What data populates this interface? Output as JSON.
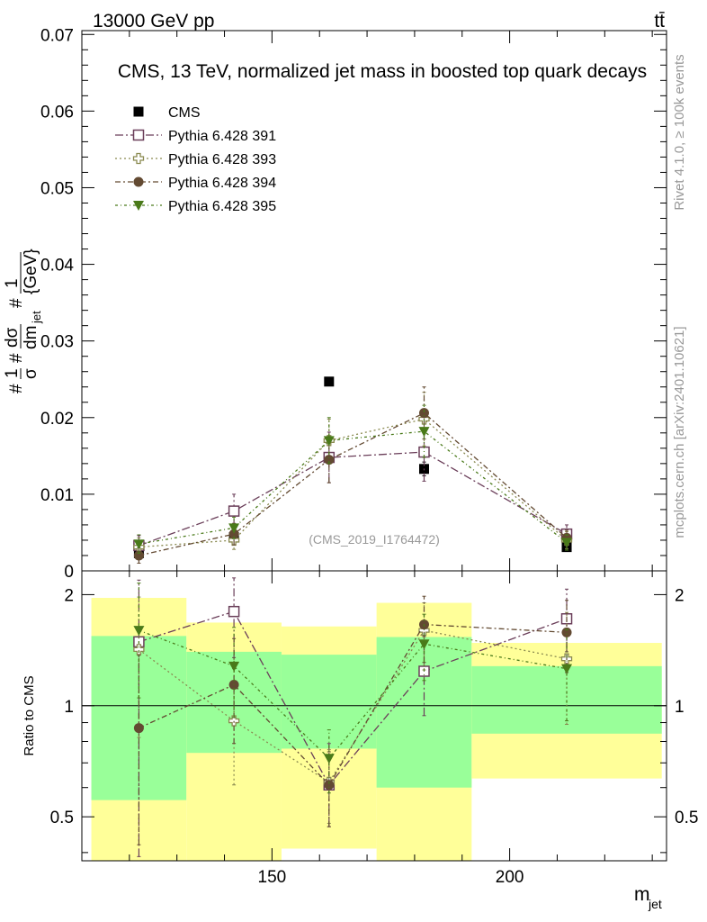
{
  "header": {
    "left": "13000 GeV pp",
    "right": "tt̄"
  },
  "side_labels": {
    "rivet": "Rivet 4.1.0, ≥ 100k events",
    "mcplots": "mcplots.cern.ch [arXiv:2401.10621]"
  },
  "colors": {
    "cms": "#000000",
    "p391": "#6b3f5a",
    "p393": "#8a8a50",
    "p394": "#634a32",
    "p395": "#4a7a1a",
    "band_inner": "#99ff99",
    "band_outer": "#ffff99"
  },
  "chart_data": [
    {
      "type": "scatter",
      "title": "CMS, 13 TeV, normalized jet mass in boosted top quark decays",
      "ylabel": "1/σ dσ/dm_jet [1/GeV]",
      "ylabel_parts": {
        "a": "1",
        "b": "σ",
        "c": "dσ",
        "d": "dm",
        "e": "jet",
        "f": "1",
        "g": "{GeV}"
      },
      "xlim": [
        110,
        233
      ],
      "ylim": [
        0,
        0.0705
      ],
      "yticks": [
        0,
        0.01,
        0.02,
        0.03,
        0.04,
        0.05,
        0.06,
        0.07
      ],
      "ytick_labels": [
        "0",
        "0.01",
        "0.02",
        "0.03",
        "0.04",
        "0.05",
        "0.06",
        "0.07"
      ],
      "watermark": "(CMS_2019_I1764472)",
      "x": [
        122,
        142,
        162,
        182,
        212
      ],
      "series": [
        {
          "name": "CMS",
          "key": "cms",
          "marker": "square-filled",
          "values": [
            0.0023,
            0.0044,
            0.0247,
            0.0133,
            0.0031
          ],
          "errors": [
            0.0003,
            0.0004,
            0.0,
            0.0009,
            0.0003
          ]
        },
        {
          "name": "Pythia 6.428 391",
          "key": "p391",
          "marker": "square-open",
          "dash": "9,3,2,3",
          "values": [
            0.0033,
            0.0078,
            0.0148,
            0.0155,
            0.0048
          ],
          "errors": [
            0.0013,
            0.0022,
            0.0033,
            0.0038,
            0.0012
          ]
        },
        {
          "name": "Pythia 6.428 393",
          "key": "p393",
          "marker": "cross-open",
          "dash": "2,3",
          "values": [
            0.0031,
            0.004,
            0.017,
            0.0198,
            0.004
          ],
          "errors": [
            0.0012,
            0.0012,
            0.0028,
            0.0035,
            0.0011
          ]
        },
        {
          "name": "Pythia 6.428 394",
          "key": "p394",
          "marker": "circle-filled",
          "dash": "6,3,2,3",
          "values": [
            0.002,
            0.0048,
            0.0145,
            0.0206,
            0.0043
          ],
          "errors": [
            0.001,
            0.0014,
            0.003,
            0.0034,
            0.001
          ]
        },
        {
          "name": "Pythia 6.428 395",
          "key": "p395",
          "marker": "triangle-down-filled",
          "dash": "3,3,1,3",
          "values": [
            0.0035,
            0.0056,
            0.017,
            0.0182,
            0.0037
          ],
          "errors": [
            0.0012,
            0.0014,
            0.003,
            0.0034,
            0.001
          ]
        }
      ]
    },
    {
      "type": "scatter",
      "ylabel": "Ratio to CMS",
      "xlabel": "m_jet",
      "xlabel_parts": {
        "main": "m",
        "sub": "jet"
      },
      "xlim": [
        110,
        233
      ],
      "ylim": [
        0.38,
        2.32
      ],
      "yscale": "log",
      "xticks": [
        150,
        200
      ],
      "xtick_labels": [
        "150",
        "200"
      ],
      "yticks": [
        0.5,
        1,
        2
      ],
      "ytick_labels": [
        "0.5",
        "1",
        "2"
      ],
      "reference_line": 1,
      "bands": [
        {
          "x0": 112,
          "x1": 132,
          "inner": [
            0.555,
            1.545
          ],
          "outer": [
            0.3,
            1.96
          ]
        },
        {
          "x0": 132,
          "x1": 152,
          "inner": [
            0.745,
            1.4
          ],
          "outer": [
            0.3,
            1.68
          ]
        },
        {
          "x0": 152,
          "x1": 172,
          "inner": [
            0.765,
            1.375
          ],
          "outer": [
            0.41,
            1.64
          ]
        },
        {
          "x0": 172,
          "x1": 192,
          "inner": [
            0.6,
            1.535
          ],
          "outer": [
            0.3,
            1.9
          ]
        },
        {
          "x0": 192,
          "x1": 232,
          "inner": [
            0.84,
            1.28
          ],
          "outer": [
            0.635,
            1.48
          ]
        }
      ],
      "x": [
        122,
        142,
        162,
        182,
        212
      ],
      "series": [
        {
          "name": "Pythia 6.428 391",
          "key": "p391",
          "marker": "square-open",
          "dash": "9,3,2,3",
          "values": [
            1.49,
            1.8,
            0.61,
            1.24,
            1.72
          ],
          "err_low": [
            1.1,
            0.45,
            0.14,
            0.3,
            0.32
          ],
          "err_high": [
            0.7,
            0.42,
            0.18,
            0.3,
            0.35
          ]
        },
        {
          "name": "Pythia 6.428 393",
          "key": "p393",
          "marker": "cross-open",
          "dash": "2,3",
          "values": [
            1.42,
            0.91,
            0.62,
            1.6,
            1.34
          ],
          "err_low": [
            0.6,
            0.3,
            0.14,
            0.35,
            0.45
          ],
          "err_high": [
            0.55,
            0.35,
            0.14,
            0.3,
            0.45
          ]
        },
        {
          "name": "Pythia 6.428 394",
          "key": "p394",
          "marker": "circle-filled",
          "dash": "6,3,2,3",
          "values": [
            0.87,
            1.14,
            0.61,
            1.66,
            1.58
          ],
          "err_low": [
            0.45,
            0.35,
            0.14,
            0.35,
            0.35
          ],
          "err_high": [
            0.5,
            0.38,
            0.14,
            0.32,
            0.35
          ]
        },
        {
          "name": "Pythia 6.428 395",
          "key": "p395",
          "marker": "triangle-down-filled",
          "dash": "3,3,1,3",
          "values": [
            1.6,
            1.28,
            0.72,
            1.47,
            1.26
          ],
          "err_low": [
            0.55,
            0.35,
            0.14,
            0.3,
            0.35
          ],
          "err_high": [
            0.55,
            0.35,
            0.14,
            0.3,
            0.35
          ]
        }
      ]
    }
  ]
}
